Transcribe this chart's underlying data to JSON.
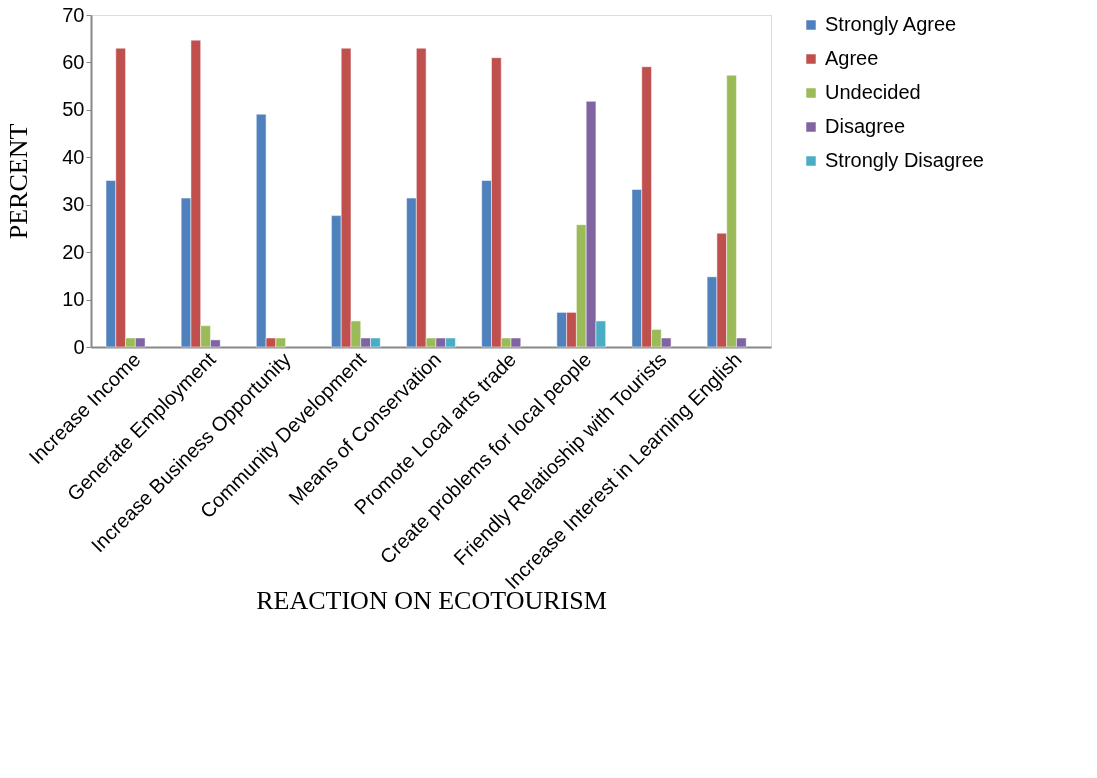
{
  "chart_data": {
    "type": "bar",
    "xlabel": "REACTION ON ECOTOURISM",
    "ylabel": "PERCENT",
    "categories": [
      "Increase Income",
      "Generate Employment",
      "Increase Business Opportunity",
      "Community Development",
      "Means of Conservation",
      "Promote Local arts trade",
      "Create problems for local people",
      "Friendly Relatioship with Tourists",
      "Increase Interest in Learning English"
    ],
    "series": [
      {
        "name": "Strongly Agree",
        "color": "#4f81bd",
        "values": [
          35.1,
          31.4,
          49.1,
          27.7,
          31.4,
          35.1,
          7.3,
          33.2,
          14.8
        ]
      },
      {
        "name": "Agree",
        "color": "#c0504d",
        "values": [
          63,
          64.7,
          1.9,
          63,
          63,
          61,
          7.3,
          59.1,
          24
        ]
      },
      {
        "name": "Undecided",
        "color": "#9bbb59",
        "values": [
          1.9,
          4.5,
          1.9,
          5.5,
          1.9,
          1.9,
          25.8,
          3.7,
          57.3
        ]
      },
      {
        "name": "Disagree",
        "color": "#8064a2",
        "values": [
          1.9,
          1.5,
          null,
          1.9,
          1.9,
          1.9,
          51.8,
          1.9,
          1.9
        ]
      },
      {
        "name": "Strongly Disagree",
        "color": "#4bacc6",
        "values": [
          null,
          null,
          null,
          1.9,
          1.9,
          null,
          5.5,
          null,
          null
        ]
      }
    ],
    "ylim": [
      0,
      70
    ],
    "yticks": [
      0,
      10,
      20,
      30,
      40,
      50,
      60,
      70
    ],
    "grid": false,
    "legend": "right"
  }
}
